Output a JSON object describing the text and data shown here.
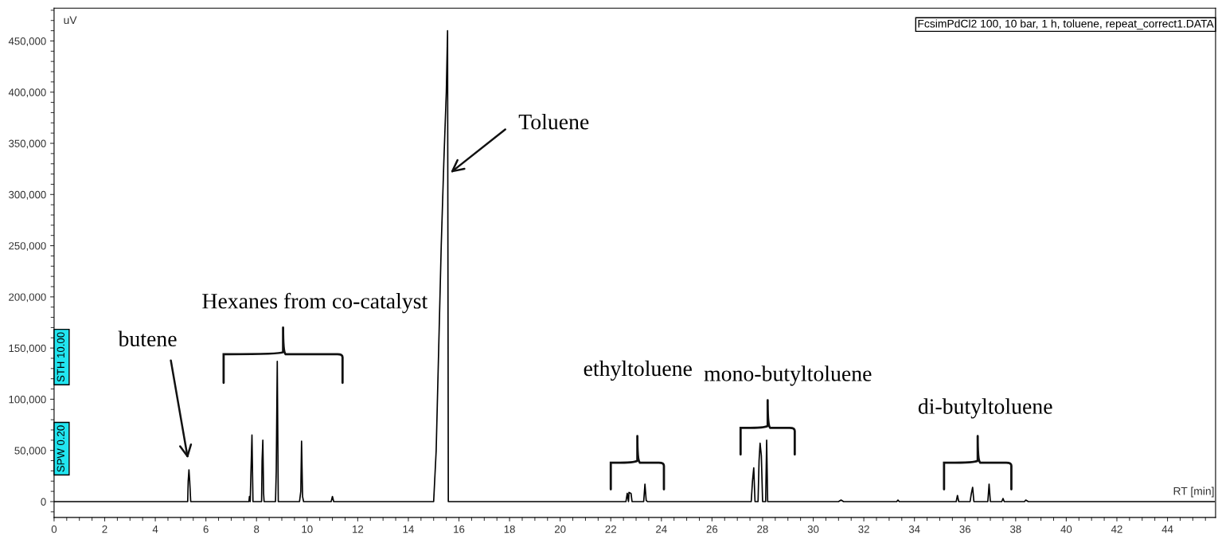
{
  "chart_data": {
    "type": "line",
    "xlabel": "RT [min]",
    "ylabel": "uV",
    "xlim": [
      0,
      45.9
    ],
    "ylim": [
      -15500,
      482000
    ],
    "xticks": [
      0,
      2,
      4,
      6,
      8,
      10,
      12,
      14,
      16,
      18,
      20,
      22,
      24,
      26,
      28,
      30,
      32,
      34,
      36,
      38,
      40,
      42,
      44
    ],
    "yticks": [
      {
        "value": 0,
        "label": "0"
      },
      {
        "value": 50000,
        "label": "50,000"
      },
      {
        "value": 100000,
        "label": "100,000"
      },
      {
        "value": 150000,
        "label": "150,000"
      },
      {
        "value": 200000,
        "label": "200,000"
      },
      {
        "value": 250000,
        "label": "250,000"
      },
      {
        "value": 300000,
        "label": "300,000"
      },
      {
        "value": 350000,
        "label": "350,000"
      },
      {
        "value": 400000,
        "label": "400,000"
      },
      {
        "value": 450000,
        "label": "450,000"
      }
    ],
    "grid": false,
    "marker": "none",
    "line_style": "solid",
    "series": [
      {
        "color": "#000000",
        "x": [
          0,
          5.2,
          5.28,
          5.3,
          5.33,
          5.36,
          5.4,
          7.7,
          7.72,
          7.75,
          7.78,
          7.82,
          7.86,
          8.2,
          8.22,
          8.25,
          8.28,
          8.3,
          8.75,
          8.78,
          8.82,
          8.86,
          9.7,
          9.75,
          9.78,
          9.82,
          9.86,
          10.95,
          11.0,
          11.05,
          15.0,
          15.1,
          15.2,
          15.3,
          15.4,
          15.5,
          15.55,
          15.58,
          22.6,
          22.65,
          22.7,
          22.72,
          22.8,
          22.84,
          23.3,
          23.35,
          23.4,
          23.45,
          27.55,
          27.6,
          27.65,
          27.7,
          27.82,
          27.86,
          27.9,
          27.95,
          28.0,
          28.12,
          28.16,
          28.2,
          31.0,
          31.1,
          31.2,
          33.3,
          33.35,
          33.4,
          35.65,
          35.7,
          35.75,
          36.2,
          36.25,
          36.3,
          36.35,
          36.9,
          36.95,
          37.0,
          37.45,
          37.5,
          37.55,
          38.35,
          38.4,
          38.5,
          45.85
        ],
        "values": [
          0,
          0,
          0,
          20000,
          31000,
          20000,
          0,
          0,
          5000,
          0,
          28000,
          65000,
          0,
          0,
          40000,
          60000,
          8000,
          0,
          0,
          30000,
          137000,
          0,
          0,
          10000,
          59000,
          5000,
          0,
          0,
          5000,
          0,
          0,
          50000,
          150000,
          250000,
          330000,
          400000,
          460000,
          0,
          0,
          8000,
          0,
          9000,
          8000,
          0,
          0,
          17000,
          1000,
          0,
          0,
          20000,
          33000,
          0,
          0,
          40000,
          57000,
          45000,
          0,
          0,
          60000,
          0,
          0,
          1500,
          0,
          0,
          1500,
          0,
          0,
          6000,
          0,
          0,
          8000,
          14000,
          0,
          0,
          17000,
          0,
          0,
          3000,
          0,
          0,
          1500,
          0,
          0
        ]
      }
    ],
    "annotations": [
      "butene",
      "Hexanes from co-catalyst",
      "Toluene",
      "ethyltoluene",
      "mono-butyltoluene",
      "di-butyltoluene",
      "FcsimPdCl2 100, 10 bar, 1 h, toluene, repeat_correct1.DATA",
      "SPW 0.20",
      "STH 10.00"
    ]
  }
}
